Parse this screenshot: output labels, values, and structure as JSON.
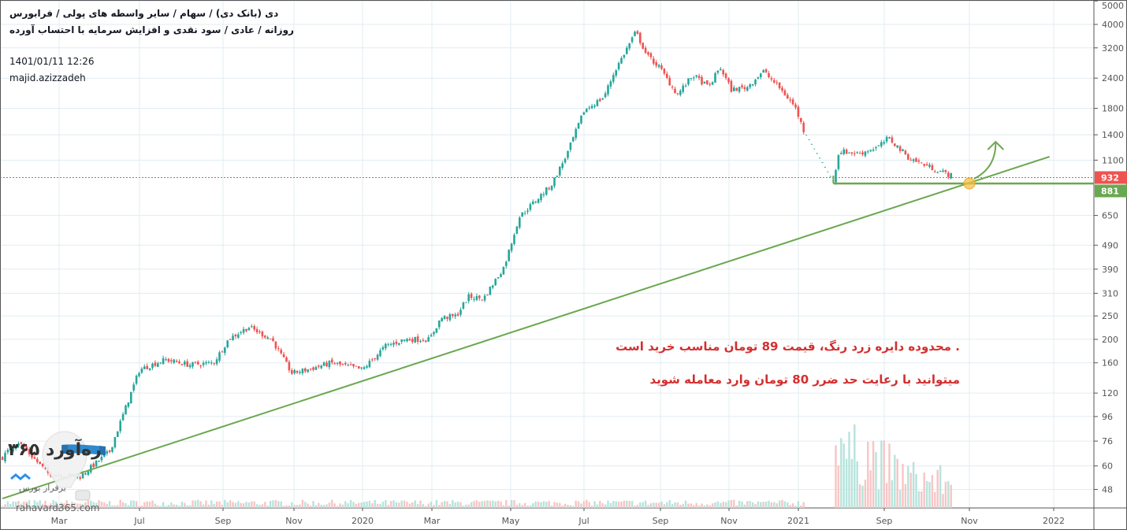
{
  "header": {
    "line1": "دی (بانک دی) / سهام / سایر واسطه های پولی / فرابورس",
    "line2": "روزانه / عادی / سود نقدی و افزایش سرمایه با احتساب آورده",
    "datetime": "1401/01/11 12:26",
    "author": "majid.azizzadeh"
  },
  "annotation": {
    "line1": ". محدوده دایره زرد رنگ، قیمت 89 تومان مناسب خرید است",
    "line2": "میتوانید با رعایت حد ضرر 80 تومان وارد معامله شوید",
    "color": "#d32f2f"
  },
  "logo": {
    "name": "ره‌آورد ۳۶۵",
    "tagline": "برفراز بورس",
    "url": "rahavard365.com"
  },
  "colors": {
    "up": "#26a69a",
    "down": "#ef5350",
    "drawing": "#6aa84f",
    "grid": "#e1ecf2",
    "highlight": "#f6c244"
  },
  "chart_data": {
    "type": "candlestick",
    "y_scale": "log",
    "ylim": [
      44,
      5000
    ],
    "grid": true,
    "y_ticks": [
      5000,
      4000,
      3200,
      2400,
      1800,
      1400,
      1100,
      650,
      490,
      390,
      310,
      250,
      200,
      160,
      120,
      96,
      76,
      60,
      48
    ],
    "x_ticks": [
      {
        "label": "Mar",
        "date": "2019-03-01"
      },
      {
        "label": "Jul",
        "date": "2019-07-01"
      },
      {
        "label": "Sep",
        "date": "2019-09-01"
      },
      {
        "label": "Nov",
        "date": "2019-11-01"
      },
      {
        "label": "2020",
        "date": "2020-01-01"
      },
      {
        "label": "Mar",
        "date": "2020-03-01"
      },
      {
        "label": "May",
        "date": "2020-05-01"
      },
      {
        "label": "Jul",
        "date": "2020-07-01"
      },
      {
        "label": "Sep",
        "date": "2020-09-01"
      },
      {
        "label": "Nov",
        "date": "2020-11-01"
      },
      {
        "label": "2021",
        "date": "2021-01-01"
      },
      {
        "label": "Sep",
        "date": "2021-09-01"
      },
      {
        "label": "Nov",
        "date": "2021-11-01"
      },
      {
        "label": "2022",
        "date": "2022-01-01"
      }
    ],
    "price_path": [
      [
        "2018-12-05",
        65
      ],
      [
        "2018-12-28",
        76
      ],
      [
        "2019-02-12",
        56
      ],
      [
        "2019-04-01",
        54
      ],
      [
        "2019-05-17",
        69
      ],
      [
        "2019-07-01",
        150
      ],
      [
        "2019-07-20",
        165
      ],
      [
        "2019-08-07",
        157
      ],
      [
        "2019-08-25",
        160
      ],
      [
        "2019-09-06",
        201
      ],
      [
        "2019-09-23",
        225
      ],
      [
        "2019-10-13",
        200
      ],
      [
        "2019-10-30",
        145
      ],
      [
        "2019-11-13",
        150
      ],
      [
        "2019-12-04",
        160
      ],
      [
        "2020-01-01",
        150
      ],
      [
        "2020-01-21",
        188
      ],
      [
        "2020-02-07",
        200
      ],
      [
        "2020-02-28",
        200
      ],
      [
        "2020-03-08",
        245
      ],
      [
        "2020-03-20",
        250
      ],
      [
        "2020-03-29",
        300
      ],
      [
        "2020-04-10",
        295
      ],
      [
        "2020-04-26",
        400
      ],
      [
        "2020-05-08",
        640
      ],
      [
        "2020-06-04",
        870
      ],
      [
        "2020-06-17",
        1170
      ],
      [
        "2020-07-01",
        1760
      ],
      [
        "2020-07-17",
        2000
      ],
      [
        "2020-07-26",
        2570
      ],
      [
        "2020-08-12",
        3730
      ],
      [
        "2020-08-21",
        2980
      ],
      [
        "2020-08-31",
        2670
      ],
      [
        "2020-09-16",
        2050
      ],
      [
        "2020-09-30",
        2470
      ],
      [
        "2020-10-14",
        2200
      ],
      [
        "2020-10-24",
        2670
      ],
      [
        "2020-11-03",
        2150
      ],
      [
        "2020-11-17",
        2200
      ],
      [
        "2020-12-01",
        2570
      ],
      [
        "2020-12-15",
        2200
      ],
      [
        "2020-12-29",
        1830
      ],
      [
        "2021-01-16",
        1460
      ],
      [
        "2021-04-10",
        900
      ],
      [
        "2021-04-26",
        1200
      ],
      [
        "2021-06-21",
        1170
      ],
      [
        "2021-08-16",
        1250
      ],
      [
        "2021-09-04",
        1360
      ],
      [
        "2021-09-19",
        1120
      ],
      [
        "2021-10-09",
        1000
      ],
      [
        "2021-10-19",
        950
      ]
    ],
    "halt_period": [
      "2021-01-16",
      "2021-04-10"
    ],
    "volume_relative": [
      [
        "2018-12-05",
        0.05
      ],
      [
        "2021-01-16",
        0.05
      ],
      [
        "2021-04-10",
        0.5
      ],
      [
        "2021-04-20",
        1.0
      ],
      [
        "2021-05-20",
        0.5
      ],
      [
        "2021-07-15",
        0.55
      ],
      [
        "2021-08-20",
        0.45
      ],
      [
        "2021-09-20",
        0.3
      ],
      [
        "2021-10-19",
        0.25
      ]
    ],
    "price_lines": [
      {
        "value": 932,
        "label": "932",
        "color": "#ef5350",
        "style": "dotted"
      },
      {
        "value": 881,
        "label": "881",
        "color": "#6aa84f",
        "style": "solid"
      }
    ],
    "drawings": {
      "trendline": {
        "from": [
          "2018-12-05",
          44
        ],
        "to": [
          "2021-12-29",
          1137
        ]
      },
      "support": {
        "from": [
          "2021-04-10",
          881
        ],
        "value": 881
      },
      "buy_zone": {
        "date": "2021-11-01",
        "value": 881
      },
      "arrow": {
        "from": [
          "2021-11-01",
          881
        ],
        "to": [
          "2021-11-20",
          1310
        ]
      }
    }
  }
}
